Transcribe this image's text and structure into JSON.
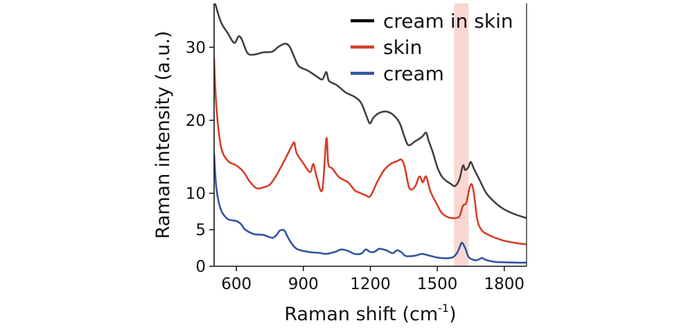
{
  "chart_data": {
    "type": "line",
    "title": "",
    "xlabel": "Raman shift (cm",
    "xlabel_sup": "-1",
    "xlabel_end": ")",
    "ylabel": "Raman intensity (a.u.)",
    "xlim": [
      500,
      1900
    ],
    "ylim": [
      0,
      36
    ],
    "xticks": [
      600,
      900,
      1200,
      1500,
      1800
    ],
    "yticks": [
      0,
      5,
      10,
      20,
      30
    ],
    "legend_position": "top-right",
    "highlight_band": {
      "x0": 1575,
      "x1": 1640,
      "color": "#f8c9c0"
    },
    "series": [
      {
        "name": "cream in skin",
        "color": "#404040",
        "legend_color": "#000000",
        "points": [
          [
            500,
            36.5
          ],
          [
            530,
            33.5
          ],
          [
            560,
            32.0
          ],
          [
            590,
            30.6
          ],
          [
            610,
            31.5
          ],
          [
            625,
            31.0
          ],
          [
            650,
            29.2
          ],
          [
            680,
            29.0
          ],
          [
            720,
            29.3
          ],
          [
            760,
            29.4
          ],
          [
            790,
            30.1
          ],
          [
            820,
            30.5
          ],
          [
            840,
            30.0
          ],
          [
            860,
            28.6
          ],
          [
            880,
            27.4
          ],
          [
            920,
            26.8
          ],
          [
            960,
            26.0
          ],
          [
            985,
            25.6
          ],
          [
            1003,
            26.6
          ],
          [
            1015,
            25.4
          ],
          [
            1050,
            24.8
          ],
          [
            1090,
            23.8
          ],
          [
            1130,
            23.2
          ],
          [
            1160,
            22.3
          ],
          [
            1190,
            20.0
          ],
          [
            1200,
            19.6
          ],
          [
            1215,
            20.4
          ],
          [
            1240,
            21.0
          ],
          [
            1270,
            21.2
          ],
          [
            1300,
            20.8
          ],
          [
            1330,
            19.7
          ],
          [
            1350,
            18.0
          ],
          [
            1370,
            16.6
          ],
          [
            1400,
            17.1
          ],
          [
            1430,
            17.7
          ],
          [
            1450,
            18.3
          ],
          [
            1460,
            17.3
          ],
          [
            1480,
            15.6
          ],
          [
            1500,
            13.6
          ],
          [
            1520,
            12.3
          ],
          [
            1540,
            11.7
          ],
          [
            1560,
            11.3
          ],
          [
            1580,
            11.0
          ],
          [
            1600,
            12.0
          ],
          [
            1615,
            13.8
          ],
          [
            1625,
            13.2
          ],
          [
            1640,
            13.6
          ],
          [
            1650,
            14.3
          ],
          [
            1665,
            13.3
          ],
          [
            1690,
            11.8
          ],
          [
            1720,
            10.0
          ],
          [
            1760,
            8.7
          ],
          [
            1800,
            7.8
          ],
          [
            1850,
            7.1
          ],
          [
            1900,
            6.6
          ]
        ]
      },
      {
        "name": "skin",
        "color": "#d53d27",
        "legend_color": "#d53d27",
        "points": [
          [
            500,
            28.5
          ],
          [
            510,
            22.0
          ],
          [
            530,
            16.5
          ],
          [
            560,
            14.5
          ],
          [
            600,
            13.8
          ],
          [
            630,
            13.0
          ],
          [
            660,
            11.6
          ],
          [
            690,
            10.7
          ],
          [
            720,
            10.8
          ],
          [
            750,
            11.2
          ],
          [
            780,
            12.5
          ],
          [
            820,
            14.8
          ],
          [
            850,
            16.6
          ],
          [
            860,
            16.9
          ],
          [
            870,
            15.5
          ],
          [
            900,
            14.1
          ],
          [
            930,
            12.9
          ],
          [
            945,
            14.0
          ],
          [
            960,
            12.2
          ],
          [
            985,
            10.5
          ],
          [
            1003,
            17.5
          ],
          [
            1012,
            14.0
          ],
          [
            1030,
            13.4
          ],
          [
            1060,
            12.2
          ],
          [
            1100,
            11.5
          ],
          [
            1130,
            10.4
          ],
          [
            1150,
            10.1
          ],
          [
            1180,
            9.7
          ],
          [
            1200,
            9.6
          ],
          [
            1230,
            11.5
          ],
          [
            1260,
            13.1
          ],
          [
            1290,
            14.0
          ],
          [
            1320,
            14.4
          ],
          [
            1340,
            14.6
          ],
          [
            1355,
            13.5
          ],
          [
            1375,
            10.7
          ],
          [
            1400,
            10.9
          ],
          [
            1420,
            12.3
          ],
          [
            1435,
            11.5
          ],
          [
            1450,
            12.3
          ],
          [
            1470,
            10.2
          ],
          [
            1500,
            8.4
          ],
          [
            1520,
            7.3
          ],
          [
            1550,
            6.7
          ],
          [
            1580,
            6.6
          ],
          [
            1600,
            6.9
          ],
          [
            1615,
            8.3
          ],
          [
            1630,
            8.7
          ],
          [
            1645,
            10.8
          ],
          [
            1655,
            11.2
          ],
          [
            1665,
            9.8
          ],
          [
            1680,
            6.3
          ],
          [
            1700,
            4.9
          ],
          [
            1730,
            4.3
          ],
          [
            1760,
            3.9
          ],
          [
            1800,
            3.5
          ],
          [
            1850,
            3.2
          ],
          [
            1900,
            3.0
          ]
        ]
      },
      {
        "name": "cream",
        "color": "#2f55a0",
        "legend_color": "#2f55a0",
        "points": [
          [
            500,
            15.5
          ],
          [
            510,
            10.8
          ],
          [
            530,
            7.8
          ],
          [
            560,
            6.5
          ],
          [
            600,
            6.2
          ],
          [
            620,
            5.8
          ],
          [
            640,
            5.0
          ],
          [
            680,
            4.4
          ],
          [
            720,
            4.3
          ],
          [
            760,
            3.9
          ],
          [
            780,
            4.3
          ],
          [
            795,
            4.9
          ],
          [
            815,
            4.9
          ],
          [
            830,
            4.0
          ],
          [
            850,
            3.0
          ],
          [
            870,
            2.4
          ],
          [
            900,
            2.1
          ],
          [
            940,
            1.9
          ],
          [
            970,
            1.85
          ],
          [
            1000,
            1.7
          ],
          [
            1040,
            1.95
          ],
          [
            1070,
            2.3
          ],
          [
            1100,
            2.1
          ],
          [
            1130,
            1.7
          ],
          [
            1160,
            1.75
          ],
          [
            1180,
            2.3
          ],
          [
            1200,
            1.95
          ],
          [
            1220,
            2.0
          ],
          [
            1240,
            2.4
          ],
          [
            1270,
            2.2
          ],
          [
            1300,
            1.8
          ],
          [
            1320,
            2.2
          ],
          [
            1340,
            1.9
          ],
          [
            1360,
            1.4
          ],
          [
            1400,
            1.45
          ],
          [
            1430,
            1.7
          ],
          [
            1460,
            1.5
          ],
          [
            1500,
            1.2
          ],
          [
            1540,
            1.1
          ],
          [
            1570,
            1.25
          ],
          [
            1590,
            1.9
          ],
          [
            1605,
            3.0
          ],
          [
            1612,
            3.2
          ],
          [
            1625,
            2.5
          ],
          [
            1640,
            1.3
          ],
          [
            1660,
            0.9
          ],
          [
            1680,
            0.85
          ],
          [
            1700,
            1.15
          ],
          [
            1720,
            0.85
          ],
          [
            1760,
            0.6
          ],
          [
            1800,
            0.55
          ],
          [
            1850,
            0.5
          ],
          [
            1900,
            0.5
          ]
        ]
      }
    ]
  }
}
